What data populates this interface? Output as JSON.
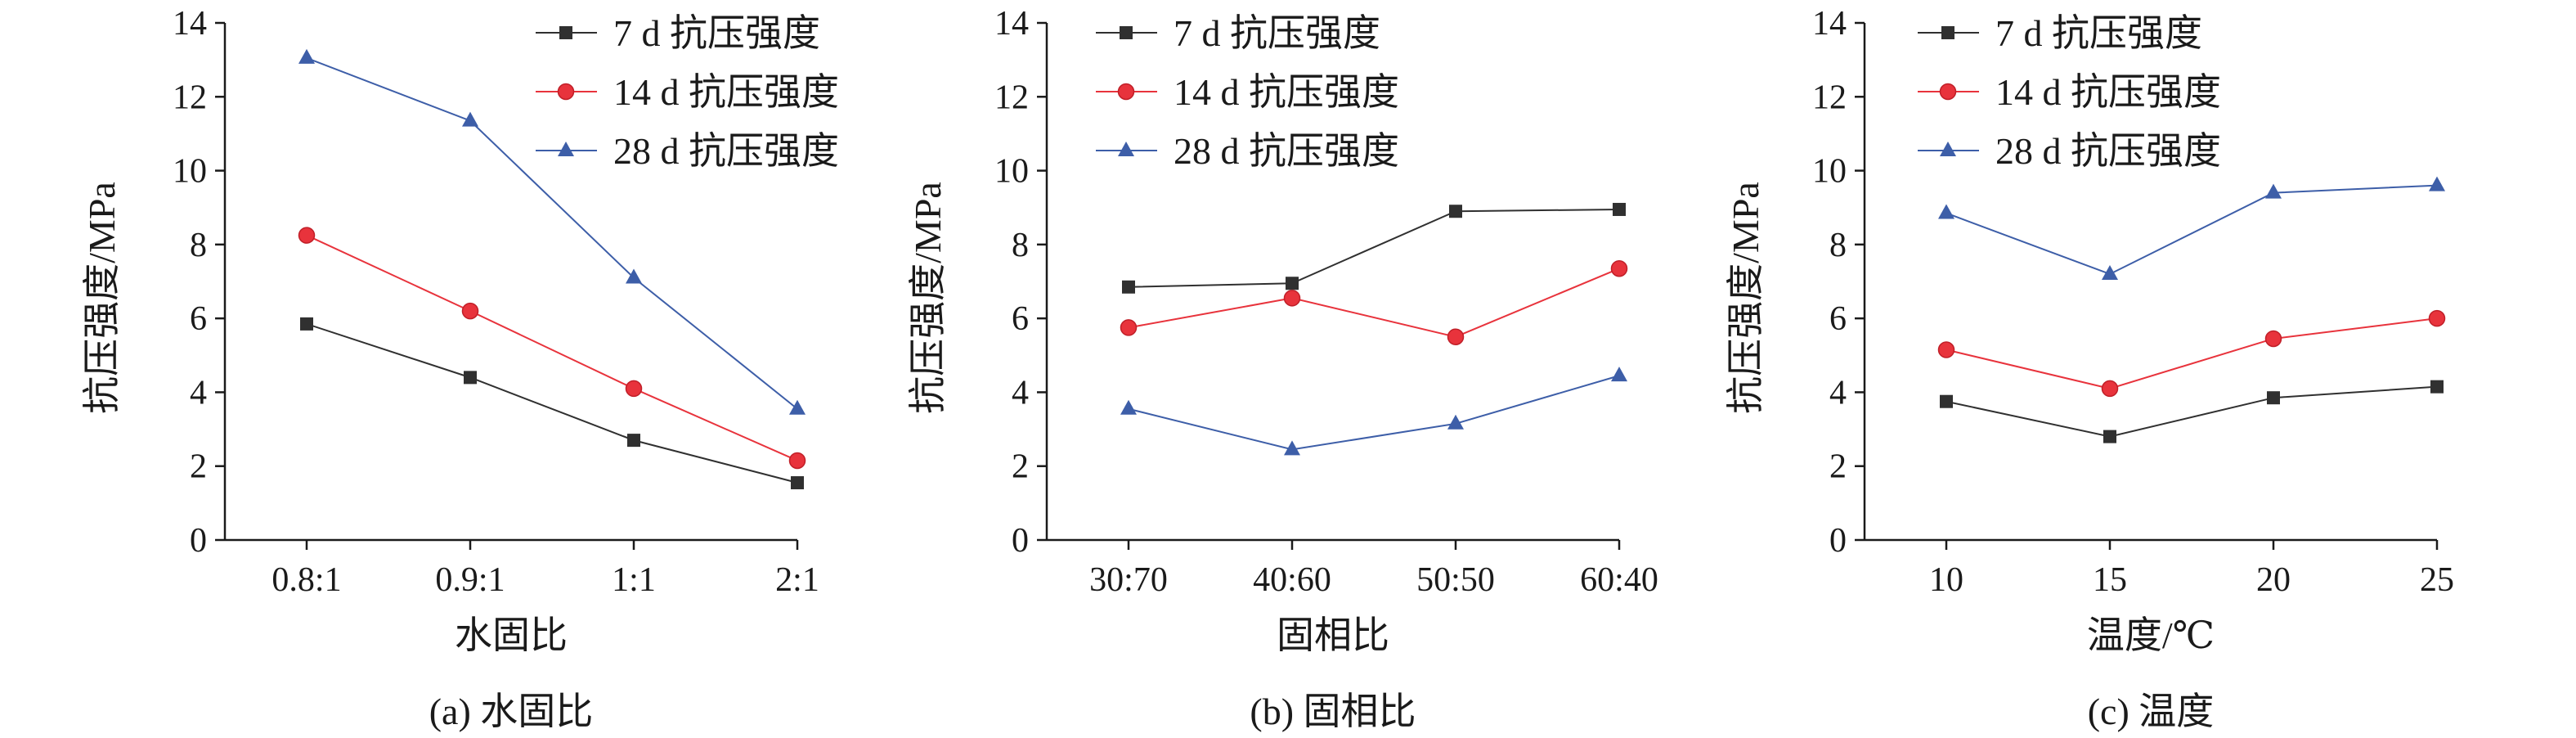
{
  "chart_data": [
    {
      "type": "line",
      "caption": "(a) 水固比",
      "xlabel": "水固比",
      "ylabel": "抗压强度/MPa",
      "categories": [
        "0.8:1",
        "0.9:1",
        "1:1",
        "2:1"
      ],
      "ylim": [
        0,
        14
      ],
      "yticks": [
        "0",
        "2",
        "4",
        "6",
        "8",
        "10",
        "12",
        "14"
      ],
      "grid": false,
      "legend_position": "top-right",
      "series": [
        {
          "name": "7 d 抗压强度",
          "values": [
            5.85,
            4.4,
            2.7,
            1.55
          ],
          "color": "#303030",
          "marker": "square"
        },
        {
          "name": "14 d 抗压强度",
          "values": [
            8.25,
            6.2,
            4.1,
            2.15
          ],
          "color": "#e8333c",
          "marker": "circle"
        },
        {
          "name": "28 d 抗压强度",
          "values": [
            13.05,
            11.35,
            7.1,
            3.55
          ],
          "color": "#3d5ea8",
          "marker": "triangle"
        }
      ]
    },
    {
      "type": "line",
      "caption": "(b) 固相比",
      "xlabel": "固相比",
      "ylabel": "抗压强度/MPa",
      "categories": [
        "30:70",
        "40:60",
        "50:50",
        "60:40"
      ],
      "ylim": [
        0,
        14
      ],
      "yticks": [
        "0",
        "2",
        "4",
        "6",
        "8",
        "10",
        "12",
        "14"
      ],
      "grid": false,
      "legend_position": "top-right",
      "series": [
        {
          "name": "7 d 抗压强度",
          "values": [
            6.85,
            6.95,
            8.9,
            8.95
          ],
          "color": "#303030",
          "marker": "square"
        },
        {
          "name": "14 d 抗压强度",
          "values": [
            5.75,
            6.55,
            5.5,
            7.35
          ],
          "color": "#e8333c",
          "marker": "circle"
        },
        {
          "name": "28 d 抗压强度",
          "values": [
            3.55,
            2.45,
            3.15,
            4.45
          ],
          "color": "#3d5ea8",
          "marker": "triangle"
        }
      ]
    },
    {
      "type": "line",
      "caption": "(c) 温度",
      "xlabel": "温度/℃",
      "ylabel": "抗压强度/MPa",
      "categories": [
        "10",
        "15",
        "20",
        "25"
      ],
      "ylim": [
        0,
        14
      ],
      "yticks": [
        "0",
        "2",
        "4",
        "6",
        "8",
        "10",
        "12",
        "14"
      ],
      "grid": false,
      "legend_position": "top-right",
      "series": [
        {
          "name": "7 d 抗压强度",
          "values": [
            3.75,
            2.8,
            3.85,
            4.15
          ],
          "color": "#303030",
          "marker": "square"
        },
        {
          "name": "14 d 抗压强度",
          "values": [
            5.15,
            4.1,
            5.45,
            6.0
          ],
          "color": "#e8333c",
          "marker": "circle"
        },
        {
          "name": "28 d 抗压强度",
          "values": [
            8.85,
            7.2,
            9.4,
            9.6
          ],
          "color": "#3d5ea8",
          "marker": "triangle"
        }
      ]
    }
  ]
}
